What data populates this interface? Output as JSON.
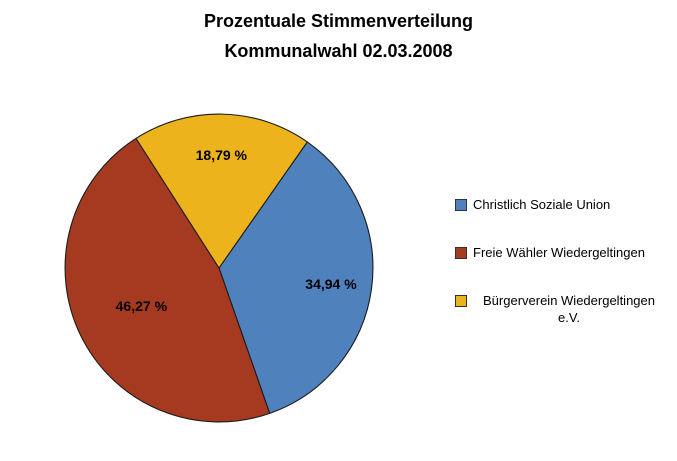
{
  "chart_data": {
    "type": "pie",
    "title_line1": "Prozentuale Stimmenverteilung",
    "title_line2": "Kommunalwahl 02.03.2008",
    "legend_position": "right",
    "start_angle_deg": 35,
    "slices": [
      {
        "label": "Christlich Soziale Union",
        "value": 34.94,
        "value_label": "34,94 %",
        "color": "#4F81BD",
        "label_r": 0.72
      },
      {
        "label": "Freie Wähler Wiedergeltingen",
        "value": 46.27,
        "value_label": "46,27 %",
        "color": "#A53A20",
        "label_r": 0.55
      },
      {
        "label": "Bürgerverein Wiedergeltingen e.V.",
        "value": 18.79,
        "value_label": "18,79 %",
        "color": "#ECB31D",
        "label_r": 0.72
      }
    ]
  }
}
